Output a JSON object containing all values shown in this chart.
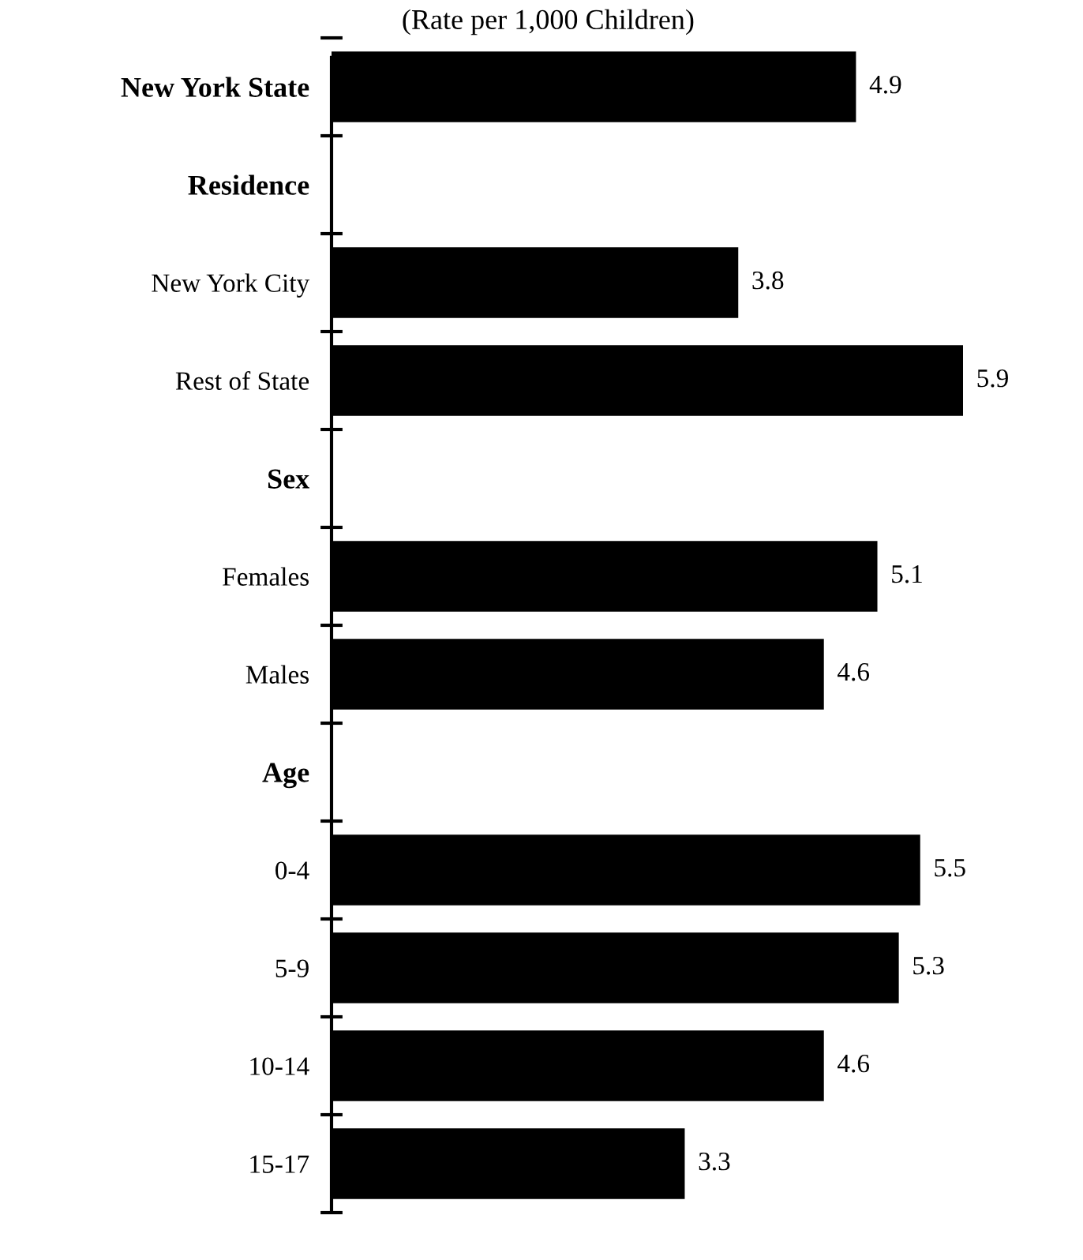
{
  "chart_data": {
    "type": "bar",
    "orientation": "horizontal",
    "subtitle": "(Rate per 1,000 Children)",
    "categories": [
      "New York State",
      "Residence",
      "New York City",
      "Rest of State",
      "Sex",
      "Females",
      "Males",
      "Age",
      "0-4",
      "5-9",
      "10-14",
      "15-17"
    ],
    "values": [
      4.9,
      null,
      3.8,
      5.9,
      null,
      5.1,
      4.6,
      null,
      5.5,
      5.3,
      4.6,
      3.3
    ],
    "color": "#000000",
    "data_labels": true,
    "tick_labels": "y"
  }
}
